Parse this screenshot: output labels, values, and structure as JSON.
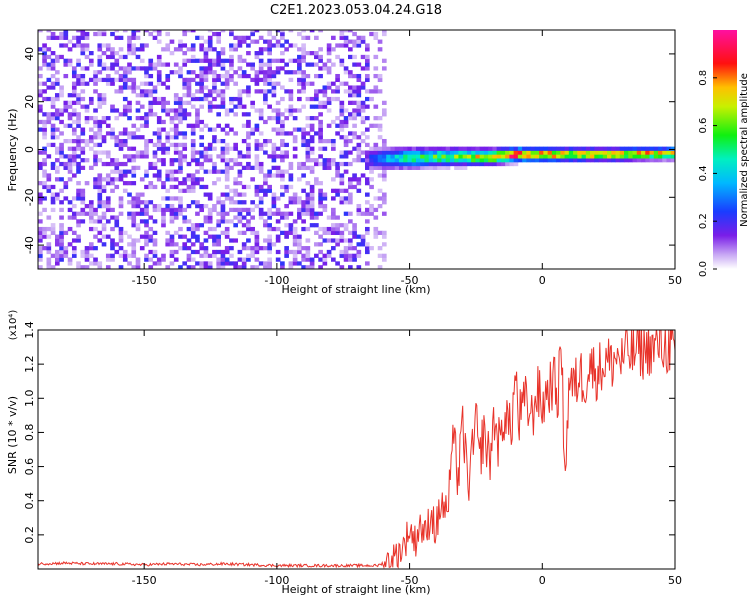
{
  "title": "C2E1.2023.053.04.24.G18",
  "chart_data": [
    {
      "type": "heatmap",
      "xlabel": "Height of straight line (km)",
      "ylabel": "Frequency (Hz)",
      "xlim": [
        -190,
        50
      ],
      "ylim": [
        -50,
        50
      ],
      "xticks": [
        -150,
        -100,
        -50,
        0,
        50
      ],
      "xtick_labels": [
        "-150",
        "-100",
        "-50",
        "0",
        "50"
      ],
      "yticks": [
        -40,
        -20,
        0,
        20,
        40
      ],
      "ytick_labels": [
        "-40",
        "-20",
        "0",
        "20",
        "40"
      ],
      "colorbar": {
        "label": "Normalized spectral amplitude",
        "range": [
          0,
          1
        ],
        "ticks": [
          0.0,
          0.2,
          0.4,
          0.6,
          0.8
        ],
        "tick_labels": [
          "0.0",
          "0.2",
          "0.4",
          "0.6",
          "0.8"
        ],
        "colormap": "rainbow (white-purple-blue-cyan-green-yellow-red-magenta)"
      },
      "noise_region": {
        "x_range": [
          -190,
          -60
        ],
        "freq_range": [
          -50,
          50
        ]
      },
      "signal_track": {
        "x_start": -66,
        "x_end": 50,
        "center_freq": [
          [
            -66,
            -4
          ],
          [
            -40,
            -3
          ],
          [
            -20,
            -3
          ],
          [
            -10,
            -2
          ],
          [
            0,
            -2
          ],
          [
            25,
            -2
          ],
          [
            50,
            -1.5
          ]
        ],
        "half_width": [
          [
            -66,
            5
          ],
          [
            -40,
            4
          ],
          [
            -10,
            3
          ],
          [
            50,
            2.5
          ]
        ],
        "peak_amplitude": [
          [
            -66,
            0.25
          ],
          [
            -50,
            0.55
          ],
          [
            -30,
            0.65
          ],
          [
            -20,
            0.85
          ],
          [
            -10,
            0.95
          ],
          [
            10,
            0.8
          ],
          [
            50,
            0.85
          ]
        ]
      }
    },
    {
      "type": "line",
      "xlabel": "Height of straight line (km)",
      "ylabel": "SNR (10 * v/v)",
      "y_multiplier": "(x10⁴)",
      "xlim": [
        -190,
        50
      ],
      "ylim": [
        0,
        1.4
      ],
      "xticks": [
        -150,
        -100,
        -50,
        0,
        50
      ],
      "xtick_labels": [
        "-150",
        "-100",
        "-50",
        "0",
        "50"
      ],
      "yticks": [
        0.2,
        0.4,
        0.6,
        0.8,
        1.0,
        1.2,
        1.4
      ],
      "ytick_labels": [
        "0.2",
        "0.4",
        "0.6",
        "0.8",
        "1.0",
        "1.2",
        "1.4"
      ],
      "color": "#e8332a",
      "series": [
        {
          "x": [
            -190,
            -180,
            -170,
            -160,
            -150,
            -140,
            -130,
            -120,
            -110,
            -100,
            -90,
            -80,
            -70,
            -62,
            -58,
            -55,
            -52,
            -50,
            -48,
            -46,
            -44,
            -42,
            -40,
            -38,
            -36,
            -34,
            -33,
            -32,
            -30,
            -28,
            -26,
            -25,
            -24,
            -22,
            -20,
            -18,
            -16,
            -14,
            -12,
            -10,
            -9,
            -8,
            -6,
            -4,
            -2,
            0,
            2,
            4,
            6,
            7,
            8,
            9,
            10,
            12,
            14,
            16,
            18,
            20,
            22,
            24,
            26,
            28,
            30,
            32,
            34,
            36,
            38,
            40,
            42,
            44,
            46,
            48,
            50
          ],
          "y": [
            0.03,
            0.035,
            0.03,
            0.03,
            0.025,
            0.03,
            0.025,
            0.03,
            0.025,
            0.02,
            0.02,
            0.02,
            0.02,
            0.02,
            0.05,
            0.08,
            0.14,
            0.24,
            0.16,
            0.27,
            0.18,
            0.34,
            0.22,
            0.4,
            0.3,
            0.6,
            0.95,
            0.45,
            0.85,
            0.5,
            0.7,
            0.92,
            0.62,
            0.8,
            0.63,
            0.88,
            0.7,
            0.95,
            0.78,
            1.15,
            0.85,
            0.92,
            0.98,
            0.88,
            1.05,
            0.95,
            1.05,
            1.1,
            1.02,
            1.35,
            0.85,
            0.6,
            1.12,
            1.05,
            1.15,
            1.1,
            1.2,
            1.15,
            1.18,
            1.22,
            1.2,
            1.25,
            1.22,
            1.28,
            1.25,
            1.3,
            1.27,
            1.3,
            1.28,
            1.32,
            1.3,
            1.3,
            1.28
          ]
        }
      ]
    }
  ]
}
